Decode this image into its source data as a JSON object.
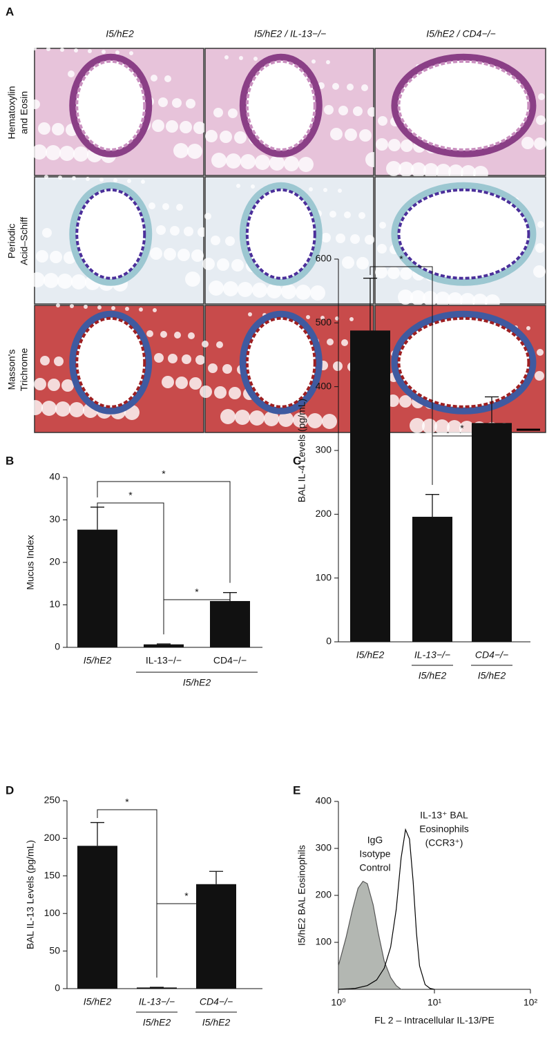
{
  "panel_labels": [
    "A",
    "B",
    "C",
    "D",
    "E"
  ],
  "panel_a": {
    "columns": [
      "I5/hE2",
      "I5/hE2 / IL-13−/−",
      "I5/hE2 / CD4−/−"
    ],
    "rows": [
      [
        "Hematoxylin",
        "and Eosin"
      ],
      [
        "Periodic",
        "Acid–Schiff"
      ],
      [
        "Masson's",
        "Trichrome"
      ]
    ]
  },
  "chart_data": [
    {
      "type": "bar",
      "ylabel": "Mucus Index",
      "categories": [
        "I5/hE2",
        "IL-13−/−",
        "CD4−/−"
      ],
      "group": {
        "label": "I5/hE2",
        "members": [
          1,
          2
        ]
      },
      "values": [
        27.7,
        0.7,
        10.9
      ],
      "errors": [
        5.3,
        0.1,
        2.0
      ],
      "color": "#111111",
      "ylim": [
        0,
        40
      ],
      "yticks": [
        0,
        10,
        20,
        30,
        40
      ],
      "significance": [
        {
          "between": [
            0,
            2
          ],
          "label": "*"
        },
        {
          "between": [
            0,
            1
          ],
          "label": "*"
        },
        {
          "between": [
            1,
            2
          ],
          "label": "*"
        }
      ]
    },
    {
      "type": "bar",
      "ylabel": "BAL IL-4 Levels (pg/mL)",
      "categories": [
        "I5/hE2",
        "IL-13−/−",
        "CD4−/−"
      ],
      "category_sublabels": [
        null,
        "I5/hE2",
        "I5/hE2"
      ],
      "values": [
        488,
        196,
        343
      ],
      "errors": [
        82,
        35,
        41
      ],
      "color": "#111111",
      "ylim": [
        0,
        600
      ],
      "yticks": [
        0,
        100,
        200,
        300,
        400,
        500,
        600
      ],
      "significance": [
        {
          "between": [
            0,
            1
          ],
          "label": "*"
        },
        {
          "between": [
            1,
            2
          ],
          "label": "*"
        }
      ]
    },
    {
      "type": "bar",
      "ylabel": "BAL IL-13 Levels (pg/mL)",
      "categories": [
        "I5/hE2",
        "IL-13−/−",
        "CD4−/−"
      ],
      "category_sublabels": [
        null,
        "I5/hE2",
        "I5/hE2"
      ],
      "values": [
        190,
        1.5,
        139
      ],
      "errors": [
        31,
        0.3,
        17
      ],
      "color": "#111111",
      "ylim": [
        0,
        250
      ],
      "yticks": [
        0,
        50,
        100,
        150,
        200,
        250
      ],
      "significance": [
        {
          "between": [
            0,
            1
          ],
          "label": "*"
        },
        {
          "between": [
            1,
            2
          ],
          "label": "*"
        }
      ]
    },
    {
      "type": "line",
      "ylabel": "I5/hE2 BAL Eosinophils",
      "xlabel": "FL 2 – Intracellular IL-13/PE",
      "xscale": "log",
      "xlim": [
        1,
        100
      ],
      "xticks": [
        {
          "value": 1,
          "label": "10⁰"
        },
        {
          "value": 10,
          "label": "10¹"
        },
        {
          "value": 100,
          "label": "10²"
        }
      ],
      "ylim": [
        0,
        400
      ],
      "yticks": [
        100,
        200,
        300,
        400
      ],
      "series": [
        {
          "name_lines": [
            "IgG",
            "Isotype",
            "Control"
          ],
          "color": "#b3b7b2",
          "fill": true,
          "x": [
            1,
            1.2,
            1.4,
            1.6,
            1.8,
            2.0,
            2.3,
            2.6,
            3.0,
            3.5,
            4.0,
            4.5
          ],
          "values": [
            50,
            110,
            170,
            215,
            230,
            225,
            180,
            120,
            60,
            25,
            8,
            0
          ]
        },
        {
          "name_lines": [
            "IL-13⁺ BAL",
            "Eosinophils",
            "(CCR3⁺)"
          ],
          "color": "#000000",
          "fill": false,
          "x": [
            1,
            1.5,
            2,
            2.5,
            3,
            3.5,
            4,
            4.5,
            5,
            5.5,
            6,
            6.5,
            7,
            8,
            9,
            10
          ],
          "values": [
            0,
            2,
            8,
            20,
            45,
            90,
            170,
            280,
            340,
            320,
            230,
            120,
            50,
            10,
            2,
            0
          ]
        }
      ]
    }
  ]
}
